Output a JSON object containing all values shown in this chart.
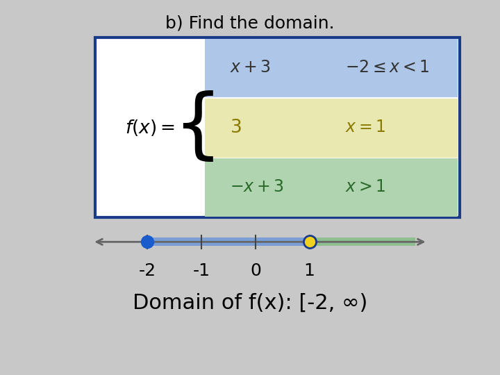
{
  "title": "b) Find the domain.",
  "title_fontsize": 18,
  "background_color": "#c8c8c8",
  "box_facecolor": "#ffffff",
  "box_edgecolor": "#1a3a8a",
  "row1_color": "#aec6e8",
  "row2_color": "#e8e8b0",
  "row3_color": "#b0d4b0",
  "row1_expr": "$x + 3$",
  "row1_cond": "$-2 \\leq x < 1$",
  "row2_expr": "$3$",
  "row2_cond": "$x = 1$",
  "row3_expr": "$-x + 3$",
  "row3_cond": "$x > 1$",
  "fx_label": "$f(x) =$",
  "segment1_color": "#7a9fd4",
  "segment2_color": "#8fbe8f",
  "dot_closed_color": "#1a5ccc",
  "dot_open_color": "#f0d020",
  "dot_open_edgecolor": "#1a3a8a",
  "domain_text": "Domain of f(x): [-2, ∞)",
  "domain_fontsize": 22,
  "arrow_color": "#666666",
  "tick_labels": [
    "-2",
    "-1",
    "0",
    "1"
  ]
}
